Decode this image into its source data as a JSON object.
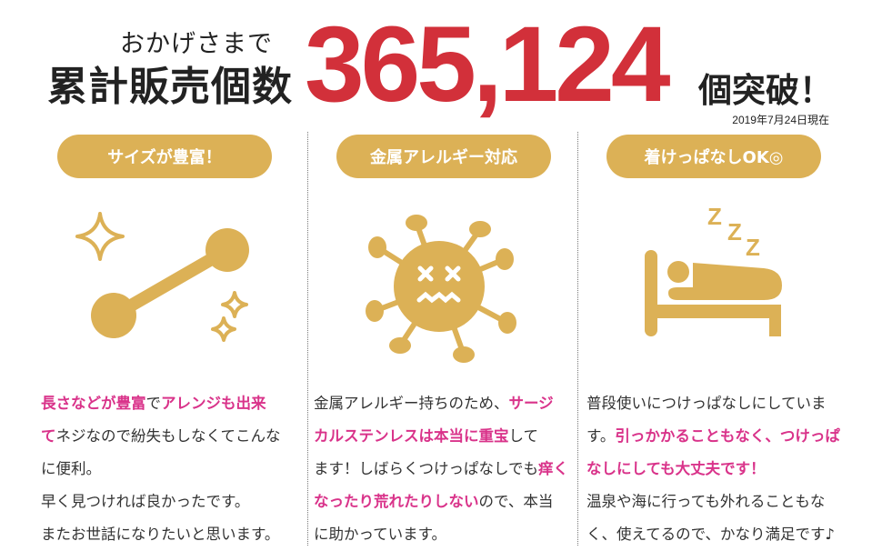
{
  "headline": {
    "thanks": "おかげさまで",
    "total_label": "累計販売個数",
    "count": "365,124",
    "breakthrough": "個突破！",
    "as_of": "2019年7月24日現在"
  },
  "colors": {
    "gold": "#dcb156",
    "red": "#d2303a",
    "pink": "#d9338a"
  },
  "features": [
    {
      "title": "サイズが豊富！",
      "icon": "barbell-sparkle-icon",
      "lines": [
        [
          {
            "t": "長さなどが豊富",
            "h": true
          },
          {
            "t": "で",
            "h": false
          },
          {
            "t": "アレンジも出来",
            "h": true
          }
        ],
        [
          {
            "t": "て",
            "h": true
          },
          {
            "t": "ネジなので紛失もしなくてこんな",
            "h": false
          }
        ],
        [
          {
            "t": "に便利。",
            "h": false
          }
        ],
        [
          {
            "t": "早く見つければ良かったです。",
            "h": false
          }
        ],
        [
          {
            "t": "またお世話になりたいと思います。",
            "h": false
          }
        ]
      ]
    },
    {
      "title": "金属アレルギー対応",
      "icon": "virus-icon",
      "lines": [
        [
          {
            "t": "金属アレルギー持ちのため、",
            "h": false
          },
          {
            "t": "サージ",
            "h": true
          }
        ],
        [
          {
            "t": "カルステンレスは本当に重宝",
            "h": true
          },
          {
            "t": "して",
            "h": false
          }
        ],
        [
          {
            "t": "ます！しばらくつけっぱなしでも",
            "h": false
          },
          {
            "t": "痒く",
            "h": true
          }
        ],
        [
          {
            "t": "なったり荒れたりしない",
            "h": true
          },
          {
            "t": "ので、本当",
            "h": false
          }
        ],
        [
          {
            "t": "に助かっています。",
            "h": false
          }
        ]
      ]
    },
    {
      "title": "着けっぱなしOK◎",
      "icon": "sleeping-bed-icon",
      "zzz": "Z Z Z",
      "lines": [
        [
          {
            "t": "普段使いにつけっぱなしにしていま",
            "h": false
          }
        ],
        [
          {
            "t": "す。",
            "h": false
          },
          {
            "t": "引っかかることもなく、つけっぱ",
            "h": true
          }
        ],
        [
          {
            "t": "なしにしても大丈夫です！",
            "h": true
          }
        ],
        [
          {
            "t": "温泉や海に行っても外れることもな",
            "h": false
          }
        ],
        [
          {
            "t": "く、使えてるので、かなり満足です♪",
            "h": false
          }
        ]
      ]
    }
  ]
}
